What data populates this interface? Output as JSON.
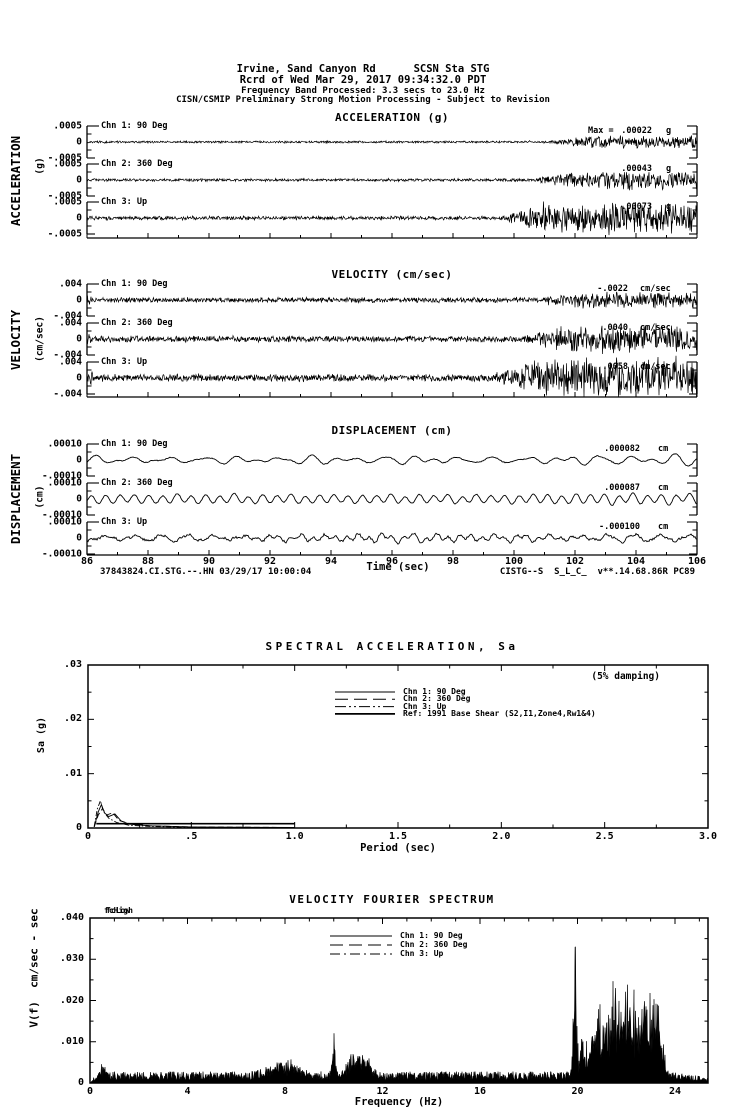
{
  "header": {
    "line1": "Irvine, Sand Canyon Rd      SCSN Sta STG",
    "line2": "Rcrd of Wed Mar 29, 2017 09:34:32.0 PDT",
    "line3": "Frequency Band Processed: 3.3 secs to 23.0 Hz",
    "line4": "CISN/CSMIP Preliminary Strong Motion Processing - Subject to Revision"
  },
  "groups": [
    {
      "title": "ACCELERATION (g)",
      "ylabel": "ACCELERATION",
      "yunit": "(g)",
      "ticks": [
        ".0005",
        "0",
        "-.0005"
      ],
      "channels": [
        {
          "label": "Chn 1: 90 Deg",
          "max_prefix": "Max =",
          "max_value": ".00022",
          "max_unit": "g"
        },
        {
          "label": "Chn 2: 360 Deg",
          "max_prefix": "",
          "max_value": ".00043",
          "max_unit": "g"
        },
        {
          "label": "Chn 3: Up",
          "max_prefix": "",
          "max_value": ".00073",
          "max_unit": "g"
        }
      ]
    },
    {
      "title": "VELOCITY (cm/sec)",
      "ylabel": "VELOCITY",
      "yunit": "(cm/sec)",
      "ticks": [
        ".004",
        "0",
        "-.004"
      ],
      "channels": [
        {
          "label": "Chn 1: 90 Deg",
          "max_prefix": "",
          "max_value": "-.0022",
          "max_unit": "cm/sec"
        },
        {
          "label": "Chn 2: 360 Deg",
          "max_prefix": "",
          "max_value": ".0040",
          "max_unit": "cm/sec"
        },
        {
          "label": "Chn 3: Up",
          "max_prefix": "",
          "max_value": ".0058",
          "max_unit": "cm/sec"
        }
      ]
    },
    {
      "title": "DISPLACEMENT (cm)",
      "ylabel": "DISPLACEMENT",
      "yunit": "(cm)",
      "ticks": [
        ".00010",
        "0",
        "-.00010"
      ],
      "channels": [
        {
          "label": "Chn 1: 90 Deg",
          "max_prefix": "",
          "max_value": ".000082",
          "max_unit": "cm"
        },
        {
          "label": "Chn 2: 360 Deg",
          "max_prefix": "",
          "max_value": ".000087",
          "max_unit": "cm"
        },
        {
          "label": "Chn 3: Up",
          "max_prefix": "",
          "max_value": "-.000100",
          "max_unit": "cm"
        }
      ]
    }
  ],
  "time_axis": {
    "tick_labels": [
      "86",
      "88",
      "90",
      "92",
      "94",
      "96",
      "98",
      "100",
      "102",
      "104",
      "106"
    ],
    "label": "Time (sec)",
    "footer_left": "37843824.CI.STG.--.HN 03/29/17 10:00:04",
    "footer_right": "CISTG--S  S_L_C_  v**.14.68.86R PC89"
  },
  "sa": {
    "title": "SPECTRAL ACCELERATION, Sa",
    "damping_note": "(5% damping)",
    "ylabel": "Sa (g)",
    "xlabel": "Period (sec)",
    "ytick_labels": [
      ".03",
      ".02",
      ".01",
      "0"
    ],
    "xtick_labels": [
      "0",
      ".5",
      "1.0",
      "1.5",
      "2.0",
      "2.5",
      "3.0"
    ],
    "legend": [
      {
        "label": "Chn 1: 90 Deg"
      },
      {
        "label": "Chn 2: 360 Deg"
      },
      {
        "label": "Chn 3: Up"
      },
      {
        "label": "Ref: 1991 Base Shear (S2,I1,Zone4,Rw1&4)"
      }
    ]
  },
  "fourier": {
    "title": "VELOCITY FOURIER SPECTRUM",
    "fc_low_label": "fcLow",
    "fc_high_label": "fcHigh",
    "ylabel": "V(f)  cm/sec - sec",
    "xlabel": "Frequency (Hz)",
    "ytick_labels": [
      ".040",
      ".030",
      ".020",
      ".010",
      "0"
    ],
    "xtick_labels": [
      "0",
      "4",
      "8",
      "12",
      "16",
      "20",
      "24"
    ],
    "legend": [
      {
        "label": "Chn 1: 90 Deg"
      },
      {
        "label": "Chn 2: 360 Deg"
      },
      {
        "label": "Chn 3: Up"
      }
    ]
  },
  "chart_data": [
    {
      "type": "line",
      "title": "ACCELERATION (g)",
      "xlabel": "Time (sec)",
      "xlim": [
        86,
        106
      ],
      "ylim": [
        -0.0005,
        0.0005
      ],
      "units": "g",
      "series": [
        {
          "name": "Chn 1: 90 Deg",
          "max": 0.00022,
          "burst_start_sec": 101.0
        },
        {
          "name": "Chn 2: 360 Deg",
          "max": 0.00043,
          "burst_start_sec": 100.6
        },
        {
          "name": "Chn 3: Up",
          "max": 0.00073,
          "burst_start_sec": 99.6
        }
      ]
    },
    {
      "type": "line",
      "title": "VELOCITY (cm/sec)",
      "xlabel": "Time (sec)",
      "xlim": [
        86,
        106
      ],
      "ylim": [
        -0.004,
        0.004
      ],
      "units": "cm/sec",
      "series": [
        {
          "name": "Chn 1: 90 Deg",
          "max": -0.0022,
          "burst_start_sec": 100.8
        },
        {
          "name": "Chn 2: 360 Deg",
          "max": 0.004,
          "burst_start_sec": 100.2
        },
        {
          "name": "Chn 3: Up",
          "max": 0.0058,
          "burst_start_sec": 99.4
        }
      ]
    },
    {
      "type": "line",
      "title": "DISPLACEMENT (cm)",
      "xlabel": "Time (sec)",
      "xlim": [
        86,
        106
      ],
      "ylim": [
        -0.0001,
        0.0001
      ],
      "units": "cm",
      "series": [
        {
          "name": "Chn 1: 90 Deg",
          "max": 8.2e-05
        },
        {
          "name": "Chn 2: 360 Deg",
          "max": 8.7e-05
        },
        {
          "name": "Chn 3: Up",
          "max": -0.0001
        }
      ]
    },
    {
      "type": "line",
      "title": "SPECTRAL ACCELERATION, Sa",
      "xlabel": "Period (sec)",
      "ylabel": "Sa (g)",
      "xlim": [
        0,
        3.0
      ],
      "ylim": [
        0,
        0.03
      ],
      "damping": "5%",
      "series": [
        {
          "name": "Chn 1: 90 Deg",
          "points": [
            [
              0.03,
              0.0002
            ],
            [
              0.05,
              0.003
            ],
            [
              0.065,
              0.0043
            ],
            [
              0.08,
              0.0028
            ],
            [
              0.1,
              0.0021
            ],
            [
              0.13,
              0.0026
            ],
            [
              0.16,
              0.0013
            ],
            [
              0.2,
              0.0007
            ],
            [
              0.3,
              0.0004
            ],
            [
              0.5,
              0.0002
            ],
            [
              1.0,
              0.0001
            ]
          ]
        },
        {
          "name": "Chn 2: 360 Deg",
          "points": [
            [
              0.03,
              0.0002
            ],
            [
              0.05,
              0.0024
            ],
            [
              0.07,
              0.0036
            ],
            [
              0.09,
              0.0024
            ],
            [
              0.12,
              0.0028
            ],
            [
              0.15,
              0.0014
            ],
            [
              0.2,
              0.0008
            ],
            [
              0.3,
              0.0004
            ],
            [
              0.5,
              0.0002
            ],
            [
              1.0,
              0.0001
            ]
          ]
        },
        {
          "name": "Chn 3: Up",
          "points": [
            [
              0.03,
              0.0003
            ],
            [
              0.045,
              0.0035
            ],
            [
              0.06,
              0.005
            ],
            [
              0.075,
              0.003
            ],
            [
              0.1,
              0.0018
            ],
            [
              0.14,
              0.001
            ],
            [
              0.2,
              0.0005
            ],
            [
              0.3,
              0.0003
            ],
            [
              0.5,
              0.0001
            ],
            [
              1.0,
              5e-05
            ]
          ]
        },
        {
          "name": "Ref: 1991 Base Shear (S2,I1,Zone4,Rw1&4)",
          "points": [
            [
              0.04,
              0.0008
            ],
            [
              1.0,
              0.0008
            ]
          ]
        }
      ]
    },
    {
      "type": "area",
      "title": "VELOCITY FOURIER SPECTRUM",
      "xlabel": "Frequency (Hz)",
      "ylabel": "V(f) cm/sec - sec",
      "xlim": [
        0,
        25.4
      ],
      "ylim": [
        0,
        0.04
      ],
      "noise_floor": 0.0018,
      "peaks": [
        {
          "hz": 0.5,
          "v": 0.0025,
          "w": 0.15
        },
        {
          "hz": 8.0,
          "v": 0.0035,
          "w": 0.8
        },
        {
          "hz": 10.0,
          "v": 0.0115,
          "w": 0.09
        },
        {
          "hz": 10.8,
          "v": 0.006,
          "w": 0.35
        },
        {
          "hz": 11.3,
          "v": 0.005,
          "w": 0.3
        },
        {
          "hz": 19.9,
          "v": 0.033,
          "w": 0.1
        },
        {
          "hz": 20.2,
          "v": 0.012,
          "w": 0.1
        },
        {
          "hz": 20.8,
          "v": 0.016,
          "w": 0.3
        },
        {
          "hz": 21.5,
          "v": 0.018,
          "w": 0.4
        },
        {
          "hz": 22.2,
          "v": 0.02,
          "w": 0.4
        },
        {
          "hz": 22.9,
          "v": 0.018,
          "w": 0.3
        },
        {
          "hz": 23.3,
          "v": 0.014,
          "w": 0.25
        }
      ]
    }
  ]
}
